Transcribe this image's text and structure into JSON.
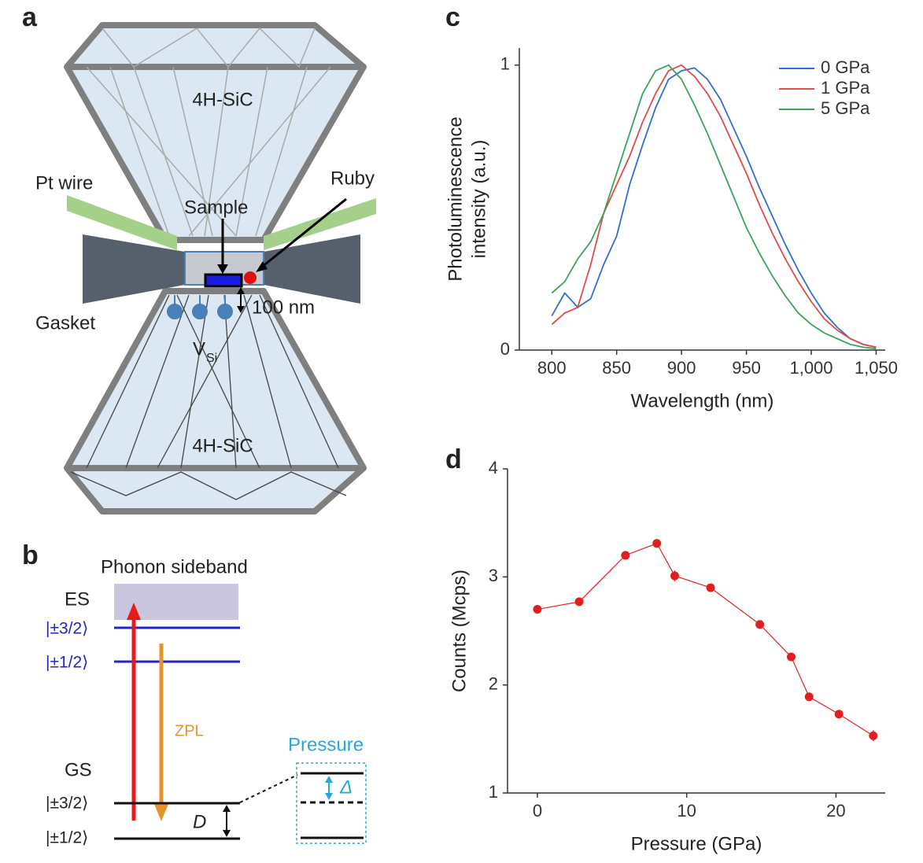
{
  "panel_labels": [
    "a",
    "b",
    "c",
    "d"
  ],
  "panel_a": {
    "anvil_top": "4H-SiC",
    "anvil_bottom": "4H-SiC",
    "pt_wire": "Pt wire",
    "ruby": "Ruby",
    "sample": "Sample",
    "gasket": "Gasket",
    "distance": "100 nm",
    "vacancy": "V",
    "vacancy_sub": "Si"
  },
  "panel_b": {
    "sideband": "Phonon sideband",
    "es": "ES",
    "es_levels": [
      "|±3/2⟩",
      "|±1/2⟩"
    ],
    "zpl": "ZPL",
    "gs": "GS",
    "gs_levels": [
      "|±3/2⟩",
      "|±1/2⟩"
    ],
    "splitting": "D",
    "pressure": "Pressure",
    "shift": "Δ"
  },
  "chart_data": [
    {
      "type": "line",
      "ylabel": [
        "Photoluminescence",
        "intensity (a.u.)"
      ],
      "xlabel": "Wavelength (nm)",
      "x": [
        800,
        810,
        820,
        830,
        840,
        850,
        860,
        870,
        880,
        890,
        900,
        910,
        920,
        930,
        940,
        950,
        960,
        970,
        980,
        990,
        1000,
        1010,
        1020,
        1030,
        1040,
        1050
      ],
      "series": [
        {
          "name": "0 GPa",
          "color": "#2f6fd3",
          "values": [
            0.12,
            0.2,
            0.15,
            0.18,
            0.3,
            0.4,
            0.58,
            0.72,
            0.85,
            0.95,
            0.98,
            0.99,
            0.95,
            0.88,
            0.78,
            0.68,
            0.57,
            0.47,
            0.37,
            0.28,
            0.2,
            0.13,
            0.08,
            0.04,
            0.02,
            0.01
          ]
        },
        {
          "name": "1 GPa",
          "color": "#e04a4a",
          "values": [
            0.09,
            0.13,
            0.15,
            0.3,
            0.48,
            0.58,
            0.68,
            0.8,
            0.9,
            0.98,
            1.0,
            0.96,
            0.9,
            0.82,
            0.72,
            0.62,
            0.51,
            0.41,
            0.32,
            0.24,
            0.17,
            0.11,
            0.07,
            0.04,
            0.02,
            0.01
          ]
        },
        {
          "name": "5 GPa",
          "color": "#3aa35a",
          "values": [
            0.2,
            0.24,
            0.32,
            0.38,
            0.48,
            0.62,
            0.76,
            0.9,
            0.98,
            1.0,
            0.95,
            0.86,
            0.76,
            0.65,
            0.54,
            0.43,
            0.34,
            0.26,
            0.19,
            0.13,
            0.09,
            0.06,
            0.04,
            0.02,
            0.01,
            0.005
          ]
        }
      ],
      "xlim": [
        775,
        1057
      ],
      "ylim": [
        0,
        1.06
      ],
      "xticks": [
        800,
        850,
        900,
        950,
        {
          "value": 1000,
          "label": "1,000"
        },
        {
          "value": 1050,
          "label": "1,050"
        }
      ],
      "yticks": [
        0,
        1
      ],
      "legend": "upper right"
    },
    {
      "type": "line",
      "ylabel": [
        "Counts (Mcps)"
      ],
      "xlabel": "Pressure (GPa)",
      "x": [
        0,
        2.8,
        5.9,
        8.0,
        9.2,
        11.6,
        14.9,
        17.0,
        18.2,
        20.2,
        22.5
      ],
      "values": [
        2.7,
        2.77,
        3.2,
        3.31,
        3.01,
        2.9,
        2.56,
        2.26,
        1.89,
        1.73,
        1.53
      ],
      "errors": [
        0.04,
        0.02,
        0.03,
        0.04,
        0.05,
        0.03,
        0.02,
        0.03,
        0.02,
        0.02,
        0.05
      ],
      "color": "#e02020",
      "markers": true,
      "xlim": [
        -2,
        23.3
      ],
      "ylim": [
        1,
        4
      ],
      "xticks": [
        0,
        10,
        20
      ],
      "yticks": [
        1,
        2,
        3,
        4
      ]
    }
  ]
}
